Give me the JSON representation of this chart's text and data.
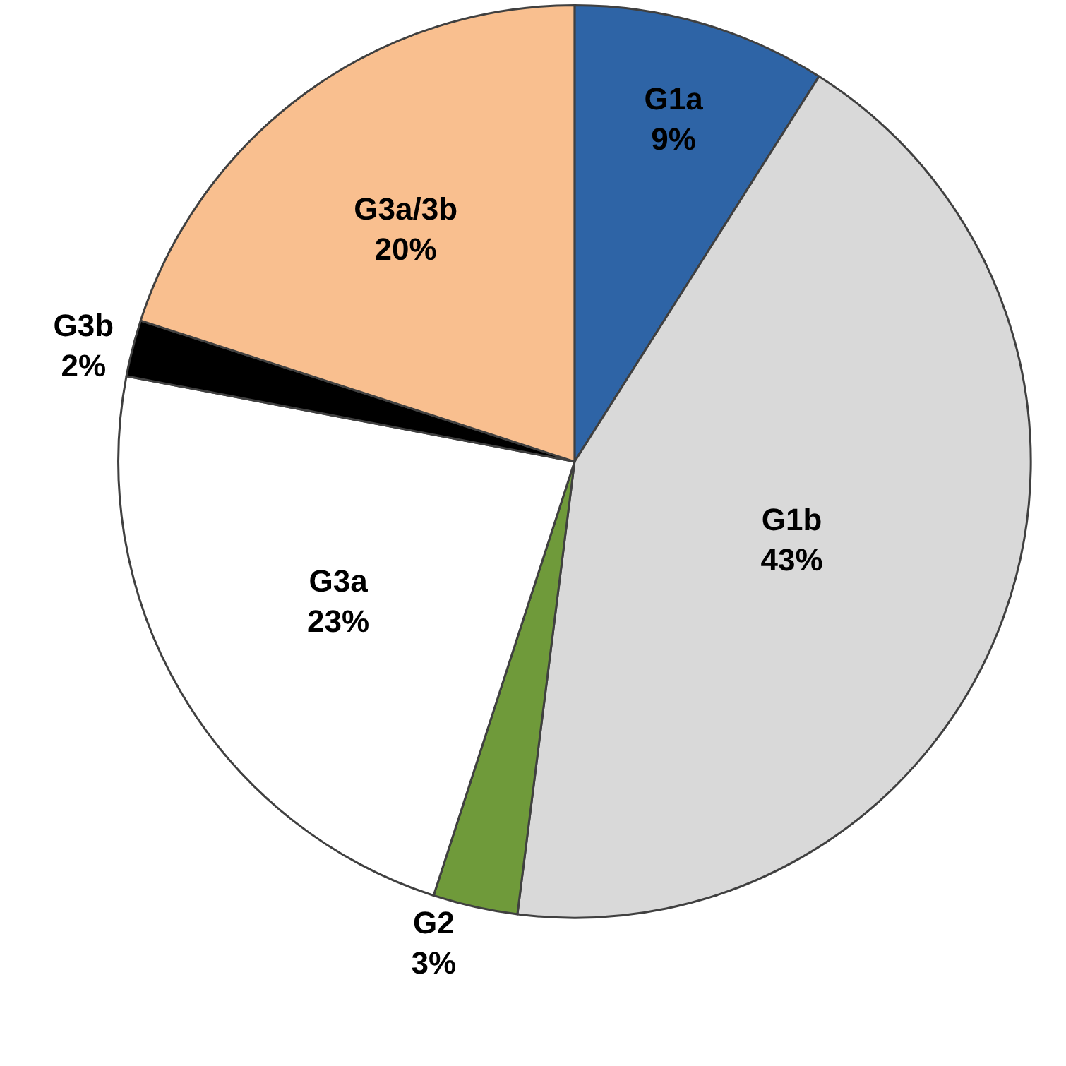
{
  "chart_data": {
    "type": "pie",
    "categories": [
      "G1a",
      "G1b",
      "G2",
      "G3a",
      "G3b",
      "G3a/3b"
    ],
    "values": [
      9,
      43,
      3,
      23,
      2,
      20
    ],
    "value_labels": [
      "9%",
      "43%",
      "3%",
      "23%",
      "2%",
      "20%"
    ],
    "colors": [
      "#2e64a6",
      "#d9d9d9",
      "#6f9a3a",
      "#ffffff",
      "#000000",
      "#f9bf8f"
    ],
    "legend": false
  }
}
